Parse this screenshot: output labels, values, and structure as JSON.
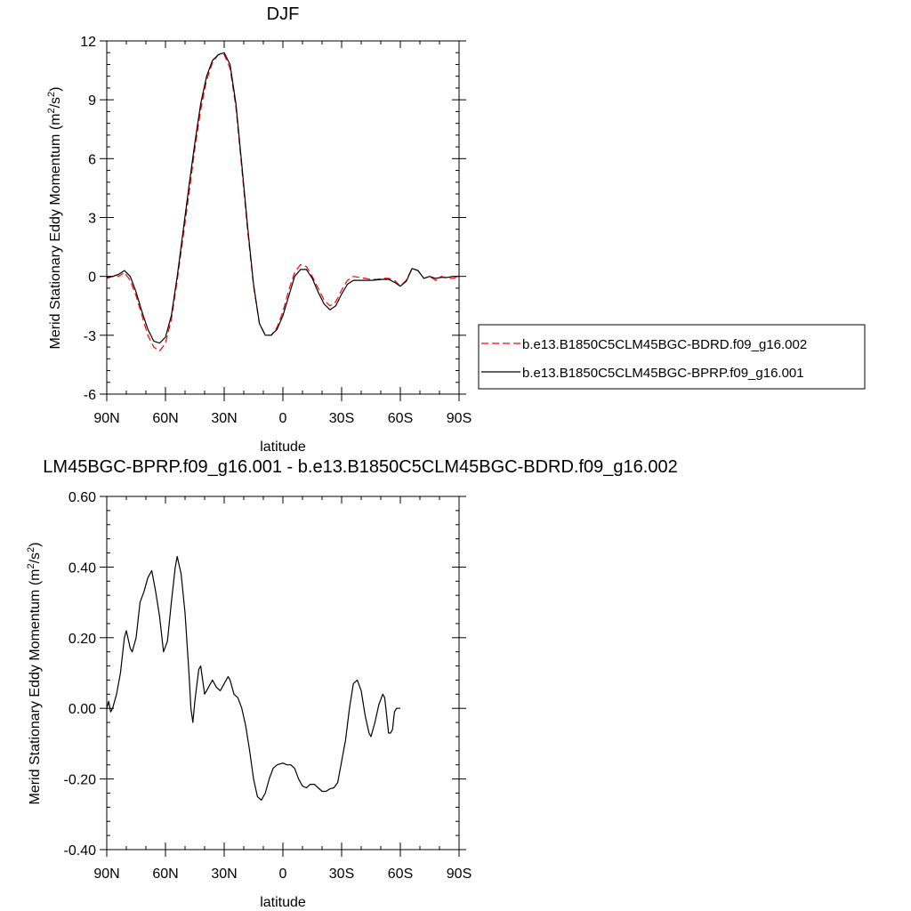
{
  "colors": {
    "series_a": "#ff0000",
    "series_b": "#000000",
    "frame": "#000000",
    "background": "#ffffff"
  },
  "chart_data": [
    {
      "type": "line",
      "title": "DJF",
      "xlabel": "latitude",
      "ylabel_main": "Merid Stationary Eddy Momentum (m",
      "ylabel_sup1": "2",
      "ylabel_mid": "/s",
      "ylabel_sup2": "2",
      "ylabel_end": ")",
      "xlim": [
        90,
        -90
      ],
      "ylim": [
        -6,
        12
      ],
      "xticks": [
        90,
        60,
        30,
        0,
        -30,
        -60,
        -90
      ],
      "xtick_labels": [
        "90N",
        "60N",
        "30N",
        "0",
        "30S",
        "60S",
        "90S"
      ],
      "yticks": [
        -6,
        -3,
        0,
        3,
        6,
        9,
        12
      ],
      "ytick_labels": [
        "-6",
        "-3",
        "0",
        "3",
        "6",
        "9",
        "12"
      ],
      "grid": false,
      "legend_position": "right",
      "series": [
        {
          "name": "b.e13.B1850C5CLM45BGC-BDRD.f09_g16.002",
          "style": "dashed",
          "color": "red",
          "points": [
            [
              90,
              -0.1
            ],
            [
              87,
              0.0
            ],
            [
              84,
              0.0
            ],
            [
              81,
              0.2
            ],
            [
              78,
              -0.2
            ],
            [
              75,
              -1.0
            ],
            [
              72,
              -2.0
            ],
            [
              69,
              -3.0
            ],
            [
              66,
              -3.6
            ],
            [
              63,
              -3.8
            ],
            [
              60,
              -3.4
            ],
            [
              57,
              -2.2
            ],
            [
              54,
              -0.2
            ],
            [
              51,
              2.0
            ],
            [
              48,
              4.2
            ],
            [
              45,
              6.5
            ],
            [
              42,
              8.5
            ],
            [
              39,
              10.0
            ],
            [
              36,
              10.9
            ],
            [
              33,
              11.3
            ],
            [
              30,
              11.3
            ],
            [
              27,
              10.6
            ],
            [
              24,
              8.6
            ],
            [
              21,
              5.5
            ],
            [
              18,
              2.3
            ],
            [
              15,
              -0.5
            ],
            [
              12,
              -2.4
            ],
            [
              9,
              -3.0
            ],
            [
              6,
              -3.0
            ],
            [
              3,
              -2.6
            ],
            [
              0,
              -1.8
            ],
            [
              -3,
              -0.7
            ],
            [
              -6,
              0.2
            ],
            [
              -9,
              0.6
            ],
            [
              -12,
              0.5
            ],
            [
              -15,
              0.0
            ],
            [
              -18,
              -0.6
            ],
            [
              -21,
              -1.2
            ],
            [
              -24,
              -1.5
            ],
            [
              -27,
              -1.3
            ],
            [
              -30,
              -0.7
            ],
            [
              -33,
              -0.2
            ],
            [
              -36,
              0.0
            ],
            [
              -39,
              -0.05
            ],
            [
              -42,
              -0.1
            ],
            [
              -45,
              -0.15
            ],
            [
              -48,
              -0.15
            ],
            [
              -51,
              -0.1
            ],
            [
              -54,
              -0.1
            ],
            [
              -57,
              -0.2
            ],
            [
              -60,
              -0.5
            ],
            [
              -63,
              -0.2
            ],
            [
              -66,
              0.4
            ],
            [
              -69,
              0.3
            ],
            [
              -72,
              -0.1
            ],
            [
              -75,
              0.0
            ],
            [
              -78,
              -0.2
            ],
            [
              -81,
              0.0
            ],
            [
              -84,
              -0.1
            ],
            [
              -87,
              -0.1
            ],
            [
              -90,
              0.0
            ]
          ]
        },
        {
          "name": "b.e13.B1850C5CLM45BGC-BPRP.f09_g16.001",
          "style": "solid",
          "color": "black",
          "points": [
            [
              90,
              -0.05
            ],
            [
              87,
              0.0
            ],
            [
              84,
              0.1
            ],
            [
              81,
              0.3
            ],
            [
              78,
              0.0
            ],
            [
              75,
              -0.8
            ],
            [
              72,
              -1.8
            ],
            [
              69,
              -2.7
            ],
            [
              66,
              -3.3
            ],
            [
              63,
              -3.4
            ],
            [
              60,
              -3.1
            ],
            [
              57,
              -2.0
            ],
            [
              54,
              0.0
            ],
            [
              51,
              2.3
            ],
            [
              48,
              4.6
            ],
            [
              45,
              6.8
            ],
            [
              42,
              8.8
            ],
            [
              39,
              10.2
            ],
            [
              36,
              11.0
            ],
            [
              33,
              11.3
            ],
            [
              30,
              11.4
            ],
            [
              27,
              10.8
            ],
            [
              24,
              8.8
            ],
            [
              21,
              5.7
            ],
            [
              18,
              2.5
            ],
            [
              15,
              -0.4
            ],
            [
              12,
              -2.4
            ],
            [
              9,
              -3.0
            ],
            [
              6,
              -3.0
            ],
            [
              3,
              -2.7
            ],
            [
              0,
              -2.0
            ],
            [
              -3,
              -1.0
            ],
            [
              -6,
              0.0
            ],
            [
              -9,
              0.35
            ],
            [
              -12,
              0.35
            ],
            [
              -15,
              -0.1
            ],
            [
              -18,
              -0.8
            ],
            [
              -21,
              -1.4
            ],
            [
              -24,
              -1.7
            ],
            [
              -27,
              -1.5
            ],
            [
              -30,
              -0.9
            ],
            [
              -33,
              -0.4
            ],
            [
              -36,
              -0.2
            ],
            [
              -39,
              -0.2
            ],
            [
              -42,
              -0.2
            ],
            [
              -45,
              -0.2
            ],
            [
              -48,
              -0.18
            ],
            [
              -51,
              -0.15
            ],
            [
              -54,
              -0.15
            ],
            [
              -57,
              -0.3
            ],
            [
              -60,
              -0.5
            ],
            [
              -63,
              -0.25
            ],
            [
              -66,
              0.4
            ],
            [
              -69,
              0.3
            ],
            [
              -72,
              -0.1
            ],
            [
              -75,
              0.0
            ],
            [
              -78,
              -0.1
            ],
            [
              -81,
              -0.05
            ],
            [
              -84,
              -0.05
            ],
            [
              -87,
              0.0
            ],
            [
              -90,
              0.0
            ]
          ]
        }
      ]
    },
    {
      "type": "line",
      "title": "LM45BGC-BPRP.f09_g16.001 - b.e13.B1850C5CLM45BGC-BDRD.f09_g16.002",
      "xlabel": "latitude",
      "ylabel_main": "Merid Stationary Eddy Momentum (m",
      "ylabel_sup1": "2",
      "ylabel_mid": "/s",
      "ylabel_sup2": "2",
      "ylabel_end": ")",
      "xlim": [
        90,
        -90
      ],
      "ylim": [
        -0.4,
        0.6
      ],
      "xticks": [
        90,
        60,
        30,
        0,
        -30,
        -60,
        -90
      ],
      "xtick_labels": [
        "90N",
        "60N",
        "30N",
        "0",
        "30S",
        "60S",
        "90S"
      ],
      "yticks": [
        -0.4,
        -0.2,
        0.0,
        0.2,
        0.4,
        0.6
      ],
      "ytick_labels": [
        "-0.40",
        "-0.20",
        "0.00",
        "0.20",
        "0.40",
        "0.60"
      ],
      "grid": false,
      "series": [
        {
          "style": "solid",
          "color": "black",
          "points": [
            [
              90,
              0.0
            ],
            [
              89,
              0.02
            ],
            [
              88,
              -0.01
            ],
            [
              87,
              0.0
            ],
            [
              85,
              0.04
            ],
            [
              83,
              0.1
            ],
            [
              81,
              0.2
            ],
            [
              80,
              0.22
            ],
            [
              78,
              0.17
            ],
            [
              77,
              0.16
            ],
            [
              75,
              0.2
            ],
            [
              73,
              0.3
            ],
            [
              71,
              0.33
            ],
            [
              69,
              0.37
            ],
            [
              67,
              0.39
            ],
            [
              65,
              0.33
            ],
            [
              63,
              0.26
            ],
            [
              61,
              0.16
            ],
            [
              59,
              0.19
            ],
            [
              57,
              0.3
            ],
            [
              55,
              0.4
            ],
            [
              54,
              0.43
            ],
            [
              52,
              0.38
            ],
            [
              50,
              0.27
            ],
            [
              48,
              0.1
            ],
            [
              47,
              0.0
            ],
            [
              46,
              -0.04
            ],
            [
              45,
              0.02
            ],
            [
              43,
              0.11
            ],
            [
              42,
              0.12
            ],
            [
              40,
              0.04
            ],
            [
              38,
              0.06
            ],
            [
              36,
              0.08
            ],
            [
              34,
              0.06
            ],
            [
              32,
              0.05
            ],
            [
              30,
              0.07
            ],
            [
              28,
              0.09
            ],
            [
              27,
              0.08
            ],
            [
              25,
              0.04
            ],
            [
              23,
              0.03
            ],
            [
              21,
              0.0
            ],
            [
              19,
              -0.05
            ],
            [
              17,
              -0.12
            ],
            [
              15,
              -0.2
            ],
            [
              13,
              -0.25
            ],
            [
              11,
              -0.26
            ],
            [
              9,
              -0.24
            ],
            [
              7,
              -0.2
            ],
            [
              5,
              -0.17
            ],
            [
              3,
              -0.16
            ],
            [
              0,
              -0.155
            ],
            [
              -2,
              -0.16
            ],
            [
              -4,
              -0.16
            ],
            [
              -6,
              -0.17
            ],
            [
              -8,
              -0.2
            ],
            [
              -10,
              -0.22
            ],
            [
              -12,
              -0.225
            ],
            [
              -14,
              -0.215
            ],
            [
              -16,
              -0.215
            ],
            [
              -18,
              -0.225
            ],
            [
              -20,
              -0.235
            ],
            [
              -22,
              -0.235
            ],
            [
              -24,
              -0.228
            ],
            [
              -26,
              -0.225
            ],
            [
              -28,
              -0.21
            ],
            [
              -30,
              -0.15
            ],
            [
              -32,
              -0.09
            ],
            [
              -34,
              0.0
            ],
            [
              -36,
              0.07
            ],
            [
              -38,
              0.08
            ],
            [
              -40,
              0.05
            ],
            [
              -42,
              -0.02
            ],
            [
              -44,
              -0.07
            ],
            [
              -45,
              -0.08
            ],
            [
              -47,
              -0.04
            ],
            [
              -49,
              0.01
            ],
            [
              -51,
              0.04
            ],
            [
              -52,
              0.03
            ],
            [
              -53,
              -0.02
            ],
            [
              -54,
              -0.07
            ],
            [
              -55,
              -0.07
            ],
            [
              -56,
              -0.06
            ],
            [
              -57,
              -0.01
            ],
            [
              -58,
              0.0
            ],
            [
              -60,
              0.0
            ]
          ]
        }
      ]
    }
  ]
}
